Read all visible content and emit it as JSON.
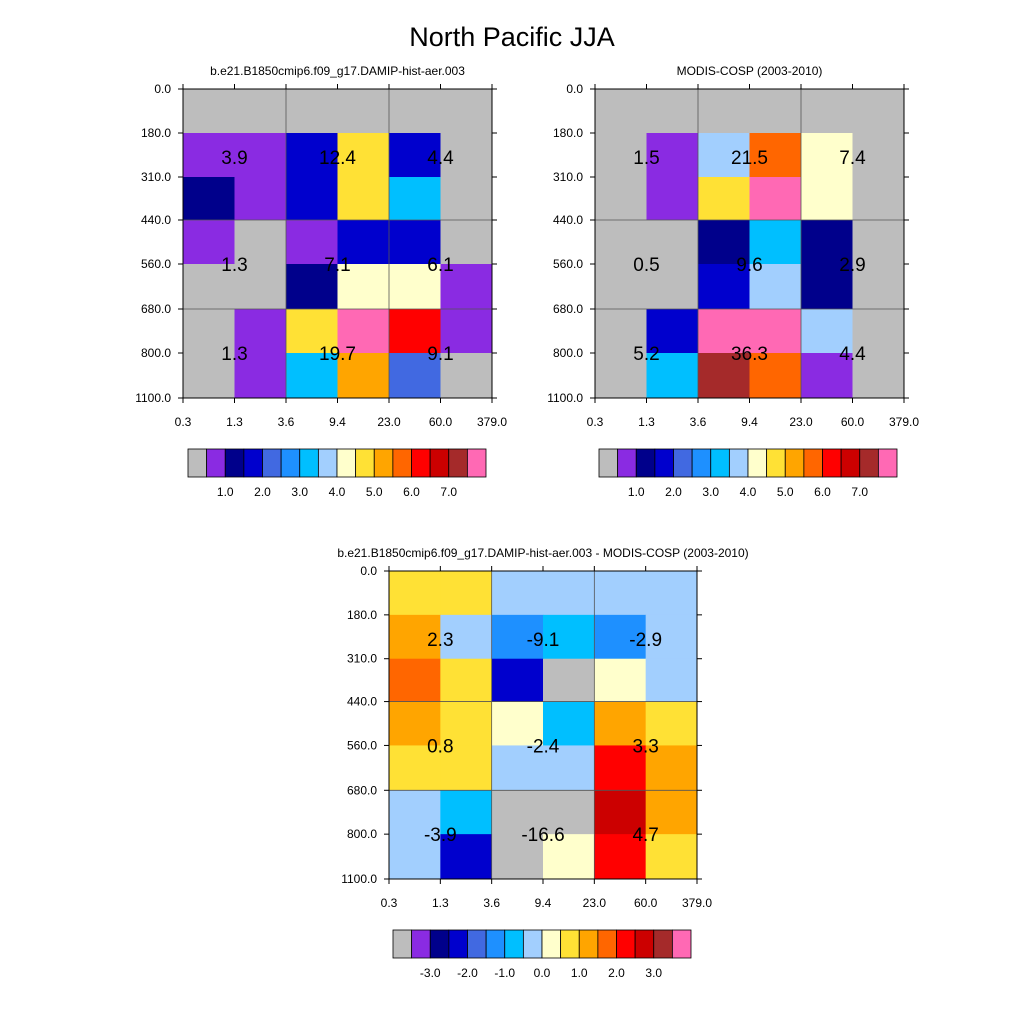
{
  "page_title": "North Pacific JJA",
  "chart_data": [
    {
      "type": "heatmap",
      "title": "b.e21.B1850cmip6.f09_g17.DAMIP-hist-aer.003",
      "x_ticks": [
        "0.3",
        "1.3",
        "3.6",
        "9.4",
        "23.0",
        "60.0",
        "379.0"
      ],
      "y_ticks": [
        "0.0",
        "180.0",
        "310.0",
        "440.0",
        "560.0",
        "680.0",
        "800.0",
        "1100.0"
      ],
      "cells": [
        [
          0,
          0,
          0,
          0,
          0,
          0
        ],
        [
          1,
          1,
          3,
          9,
          3,
          0
        ],
        [
          2,
          1,
          3,
          9,
          6,
          0
        ],
        [
          1,
          0,
          1,
          3,
          3,
          0
        ],
        [
          0,
          0,
          2,
          8,
          8,
          1
        ],
        [
          0,
          1,
          9,
          15,
          12,
          1
        ],
        [
          0,
          1,
          6,
          10,
          4,
          0
        ]
      ],
      "box_labels": [
        [
          "3.9",
          "12.4",
          "4.4"
        ],
        [
          "1.3",
          "7.1",
          "6.1"
        ],
        [
          "1.3",
          "19.7",
          "9.1"
        ]
      ],
      "colorbar": {
        "ticks": [
          "1.0",
          "2.0",
          "3.0",
          "4.0",
          "5.0",
          "6.0",
          "7.0"
        ]
      }
    },
    {
      "type": "heatmap",
      "title": "MODIS-COSP (2003-2010)",
      "x_ticks": [
        "0.3",
        "1.3",
        "3.6",
        "9.4",
        "23.0",
        "60.0",
        "379.0"
      ],
      "y_ticks": [
        "0.0",
        "180.0",
        "310.0",
        "440.0",
        "560.0",
        "680.0",
        "800.0",
        "1100.0"
      ],
      "cells": [
        [
          0,
          0,
          0,
          0,
          0,
          0
        ],
        [
          0,
          1,
          7,
          11,
          8,
          0
        ],
        [
          0,
          1,
          9,
          15,
          8,
          0
        ],
        [
          0,
          0,
          2,
          6,
          2,
          0
        ],
        [
          0,
          0,
          3,
          7,
          2,
          0
        ],
        [
          0,
          3,
          15,
          15,
          7,
          0
        ],
        [
          0,
          6,
          14,
          11,
          1,
          0
        ]
      ],
      "box_labels": [
        [
          "1.5",
          "21.5",
          "7.4"
        ],
        [
          "0.5",
          "9.6",
          "2.9"
        ],
        [
          "5.2",
          "36.3",
          "4.4"
        ]
      ],
      "colorbar": {
        "ticks": [
          "1.0",
          "2.0",
          "3.0",
          "4.0",
          "5.0",
          "6.0",
          "7.0"
        ]
      }
    },
    {
      "type": "heatmap",
      "title": "b.e21.B1850cmip6.f09_g17.DAMIP-hist-aer.003 - MODIS-COSP (2003-2010)",
      "x_ticks": [
        "0.3",
        "1.3",
        "3.6",
        "9.4",
        "23.0",
        "60.0",
        "379.0"
      ],
      "y_ticks": [
        "0.0",
        "180.0",
        "310.0",
        "440.0",
        "560.0",
        "680.0",
        "800.0",
        "1100.0"
      ],
      "cells": [
        [
          9,
          9,
          7,
          7,
          7,
          7
        ],
        [
          10,
          7,
          5,
          6,
          5,
          7
        ],
        [
          11,
          9,
          3,
          0,
          8,
          7
        ],
        [
          10,
          9,
          8,
          6,
          10,
          9
        ],
        [
          9,
          9,
          7,
          7,
          12,
          10
        ],
        [
          7,
          6,
          0,
          0,
          13,
          10
        ],
        [
          7,
          3,
          0,
          8,
          12,
          9
        ]
      ],
      "box_labels": [
        [
          "2.3",
          "-9.1",
          "-2.9"
        ],
        [
          "0.8",
          "-2.4",
          "3.3"
        ],
        [
          "-3.9",
          "-16.6",
          "4.7"
        ]
      ],
      "colorbar": {
        "ticks": [
          "-3.0",
          "-2.0",
          "-1.0",
          "0.0",
          "1.0",
          "2.0",
          "3.0"
        ]
      }
    }
  ],
  "palette": [
    "#bdbdbd",
    "#8a2be2",
    "#00008b",
    "#0000cd",
    "#4169e1",
    "#1e90ff",
    "#00bfff",
    "#a2cffe",
    "#ffffcc",
    "#ffe135",
    "#ffa500",
    "#ff6600",
    "#ff0000",
    "#cc0000",
    "#a52a2a",
    "#ff69b4"
  ]
}
